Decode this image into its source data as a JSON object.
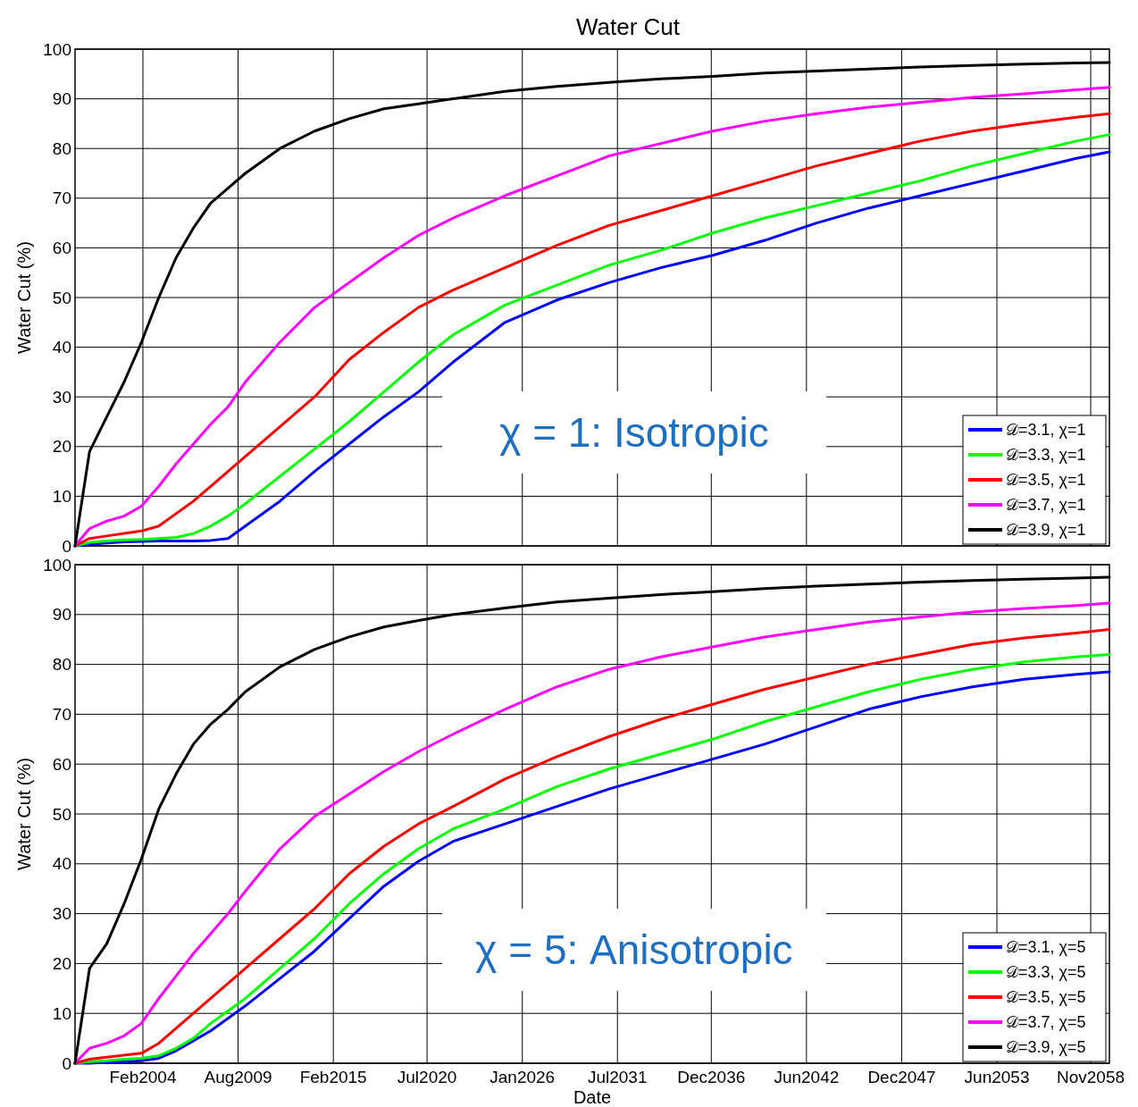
{
  "chart_data": [
    {
      "type": "line",
      "title": "Water Cut",
      "ylabel": "Water Cut (%)",
      "annotations": [
        "χ = 1: Isotropic"
      ],
      "x": [
        "2000-03",
        "2001",
        "2002",
        "2003",
        "2004",
        "2005",
        "2006",
        "2007",
        "2008",
        "2009",
        "2010",
        "2012",
        "2014",
        "2016",
        "2018",
        "2020",
        "2022",
        "2025",
        "2028",
        "2031",
        "2034",
        "2037",
        "2040",
        "2043",
        "2046",
        "2049",
        "2052",
        "2055",
        "2058",
        "2059-12"
      ],
      "series": [
        {
          "name": "𝒟=3.1, χ=1",
          "color": "#0000ff",
          "values": [
            0,
            0.3,
            0.6,
            0.8,
            0.9,
            1,
            1,
            1,
            1.1,
            1.5,
            4,
            9,
            15,
            20.5,
            26,
            31,
            37,
            45,
            49.5,
            53,
            56,
            58.5,
            61.5,
            65,
            68,
            70.5,
            73,
            75.5,
            78,
            79.3
          ]
        },
        {
          "name": "𝒟=3.3, χ=1",
          "color": "#00ff00",
          "values": [
            0,
            0.7,
            1,
            1.2,
            1.3,
            1.5,
            1.7,
            2.5,
            4,
            6,
            8.5,
            14,
            19.5,
            25,
            31,
            37,
            42.5,
            48.5,
            52.5,
            56.5,
            59.5,
            63,
            66,
            68.5,
            71,
            73.5,
            76.5,
            79,
            81.5,
            82.8
          ]
        },
        {
          "name": "𝒟=3.5, χ=1",
          "color": "#ff0000",
          "values": [
            0,
            1.5,
            2,
            2.5,
            3,
            4,
            6.5,
            9,
            12,
            15,
            18,
            24,
            30,
            37.5,
            43,
            48,
            51.5,
            56,
            60.5,
            64.5,
            67.5,
            70.5,
            73.5,
            76.5,
            79,
            81.5,
            83.5,
            85,
            86.3,
            87
          ]
        },
        {
          "name": "𝒟=3.7, χ=1",
          "color": "#ff00ff",
          "values": [
            0,
            3.5,
            5,
            6,
            8,
            12,
            16.5,
            20.5,
            24.5,
            28,
            33,
            41,
            48,
            53,
            58,
            62.5,
            66,
            70.5,
            74.5,
            78.5,
            81,
            83.5,
            85.5,
            87,
            88.3,
            89.3,
            90.3,
            91,
            91.8,
            92.3
          ]
        },
        {
          "name": "𝒟=3.9, χ=1",
          "color": "#000000",
          "values": [
            0,
            19,
            26,
            33,
            41,
            50,
            58,
            64,
            69,
            72,
            75,
            80,
            83.5,
            86,
            88,
            89,
            90,
            91.5,
            92.5,
            93.3,
            94,
            94.5,
            95.2,
            95.6,
            96,
            96.4,
            96.7,
            97,
            97.2,
            97.3
          ]
        }
      ],
      "xlim": [
        "2000-03",
        "2059-12"
      ],
      "xticks": [
        {
          "value": "2004-02",
          "label": null
        },
        {
          "value": "2009-08",
          "label": null
        },
        {
          "value": "2015-02",
          "label": null
        },
        {
          "value": "2020-07",
          "label": null
        },
        {
          "value": "2026-01",
          "label": null
        },
        {
          "value": "2031-07",
          "label": null
        },
        {
          "value": "2036-12",
          "label": null
        },
        {
          "value": "2042-06",
          "label": null
        },
        {
          "value": "2047-12",
          "label": null
        },
        {
          "value": "2053-06",
          "label": null
        },
        {
          "value": "2058-11",
          "label": null
        }
      ],
      "ylim": [
        0,
        100
      ],
      "yticks": [
        0,
        10,
        20,
        30,
        40,
        50,
        60,
        70,
        80,
        90,
        100
      ],
      "grid": true,
      "legend": "bottom right",
      "tick_labels": "y"
    },
    {
      "type": "line",
      "xlabel": "Date",
      "ylabel": "Water Cut (%)",
      "annotations": [
        "χ = 5: Anisotropic"
      ],
      "x": [
        "2000-03",
        "2001",
        "2002",
        "2003",
        "2004",
        "2005",
        "2006",
        "2007",
        "2008",
        "2009",
        "2010",
        "2012",
        "2014",
        "2016",
        "2018",
        "2020",
        "2022",
        "2025",
        "2028",
        "2031",
        "2034",
        "2037",
        "2040",
        "2043",
        "2046",
        "2049",
        "2052",
        "2055",
        "2058",
        "2059-12"
      ],
      "series": [
        {
          "name": "𝒟=3.1, χ=5",
          "color": "#0000ff",
          "values": [
            0,
            0,
            0.2,
            0.3,
            0.5,
            1,
            2.5,
            4.5,
            6.5,
            9,
            11.5,
            17,
            22.5,
            29,
            35.5,
            40.5,
            44.5,
            48,
            51.5,
            55,
            58,
            61,
            64,
            67.5,
            71,
            73.5,
            75.5,
            77,
            78,
            78.5
          ]
        },
        {
          "name": "𝒟=3.3, χ=5",
          "color": "#00ff00",
          "values": [
            0,
            0.3,
            0.5,
            0.8,
            1,
            1.5,
            3,
            5,
            8,
            10.5,
            13,
            19,
            25,
            32,
            38,
            43,
            47,
            51,
            55.5,
            59,
            62,
            65,
            68.5,
            71.5,
            74.5,
            77,
            79,
            80.5,
            81.5,
            82
          ]
        },
        {
          "name": "𝒟=3.5, χ=5",
          "color": "#ff0000",
          "values": [
            0,
            0.8,
            1.2,
            1.6,
            2,
            4,
            7,
            10,
            13,
            16,
            19,
            25,
            31,
            38,
            43.5,
            48,
            51.5,
            57,
            61.5,
            65.5,
            69,
            72,
            75,
            77.5,
            80,
            82,
            84,
            85.3,
            86.3,
            87
          ]
        },
        {
          "name": "𝒟=3.7, χ=5",
          "color": "#ff00ff",
          "values": [
            0,
            3,
            4,
            5.5,
            8,
            13,
            17.5,
            22,
            26,
            30,
            34.5,
            43,
            49.5,
            54,
            58.5,
            62.5,
            66,
            71,
            75.5,
            79,
            81.5,
            83.5,
            85.5,
            87,
            88.5,
            89.5,
            90.5,
            91.2,
            91.8,
            92.3
          ]
        },
        {
          "name": "𝒟=3.9, χ=5",
          "color": "#000000",
          "values": [
            0,
            19,
            24,
            32,
            41,
            51,
            58,
            64,
            68,
            71,
            74.5,
            79.5,
            83,
            85.5,
            87.5,
            88.8,
            90,
            91.3,
            92.5,
            93.3,
            94,
            94.6,
            95.2,
            95.7,
            96.1,
            96.5,
            96.8,
            97.1,
            97.3,
            97.5
          ]
        }
      ],
      "xlim": [
        "2000-03",
        "2059-12"
      ],
      "xticks": [
        {
          "value": "2004-02",
          "label": "Feb2004"
        },
        {
          "value": "2009-08",
          "label": "Aug2009"
        },
        {
          "value": "2015-02",
          "label": "Feb2015"
        },
        {
          "value": "2020-07",
          "label": "Jul2020"
        },
        {
          "value": "2026-01",
          "label": "Jan2026"
        },
        {
          "value": "2031-07",
          "label": "Jul2031"
        },
        {
          "value": "2036-12",
          "label": "Dec2036"
        },
        {
          "value": "2042-06",
          "label": "Jun2042"
        },
        {
          "value": "2047-12",
          "label": "Dec2047"
        },
        {
          "value": "2053-06",
          "label": "Jun2053"
        },
        {
          "value": "2058-11",
          "label": "Nov2058"
        }
      ],
      "ylim": [
        0,
        100
      ],
      "yticks": [
        0,
        10,
        20,
        30,
        40,
        50,
        60,
        70,
        80,
        90,
        100
      ],
      "grid": true,
      "legend": "bottom right"
    }
  ]
}
